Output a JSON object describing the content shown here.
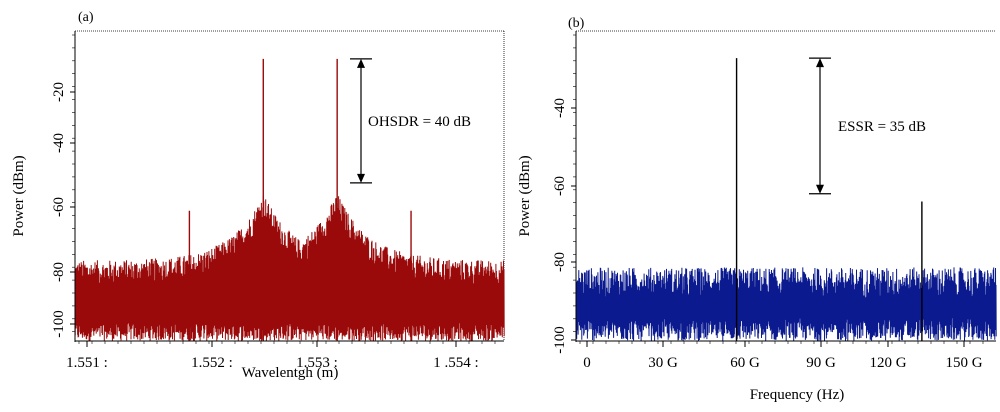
{
  "chart_data": [
    {
      "panel_label": "(a)",
      "type": "line",
      "xlabel": "Wavelentgh (m)",
      "ylabel": "Power (dBm)",
      "x_tick_labels": [
        "1.551 :",
        "1.552 :",
        "1.553 :",
        "1 .554 :"
      ],
      "x_tick_values": [
        1.551,
        1.552,
        1.553,
        1.554
      ],
      "y_tick_labels": [
        "-20",
        "-40",
        "-60",
        "-80",
        "-100"
      ],
      "y_tick_values": [
        -20,
        -40,
        -60,
        -80,
        -100
      ],
      "xlim": [
        1.5508,
        1.5544
      ],
      "ylim": [
        -100,
        0
      ],
      "series_color": "#9b0a0a",
      "noise_floor_range": [
        -100,
        -78
      ],
      "peaks": [
        {
          "x": 1.55238,
          "y": -9
        },
        {
          "x": 1.553,
          "y": -9
        },
        {
          "x": 1.55176,
          "y": -58
        },
        {
          "x": 1.55362,
          "y": -58
        }
      ],
      "annotation": {
        "text": "OHSDR = 40 dB",
        "y_top": -9,
        "y_bottom": -49
      }
    },
    {
      "panel_label": "(b)",
      "type": "line",
      "xlabel": "Frequency (Hz)",
      "ylabel": "Power (dBm)",
      "x_tick_labels": [
        "0",
        "30 G",
        "60 G",
        "90 G",
        "120 G",
        "150 G"
      ],
      "x_tick_values": [
        0,
        30,
        60,
        90,
        120,
        150
      ],
      "y_tick_labels": [
        "-40",
        "-60",
        "-80",
        "-100"
      ],
      "y_tick_values": [
        -40,
        -60,
        -80,
        -100
      ],
      "xlim": [
        -5,
        165
      ],
      "ylim": [
        -100,
        -20
      ],
      "series_color": "#0b1b8f",
      "noise_floor_range": [
        -100,
        -85
      ],
      "peaks": [
        {
          "x": 60,
          "y": -27
        },
        {
          "x": 135,
          "y": -64
        }
      ],
      "annotation": {
        "text": "ESSR = 35 dB",
        "y_top": -27,
        "y_bottom": -62
      }
    }
  ]
}
